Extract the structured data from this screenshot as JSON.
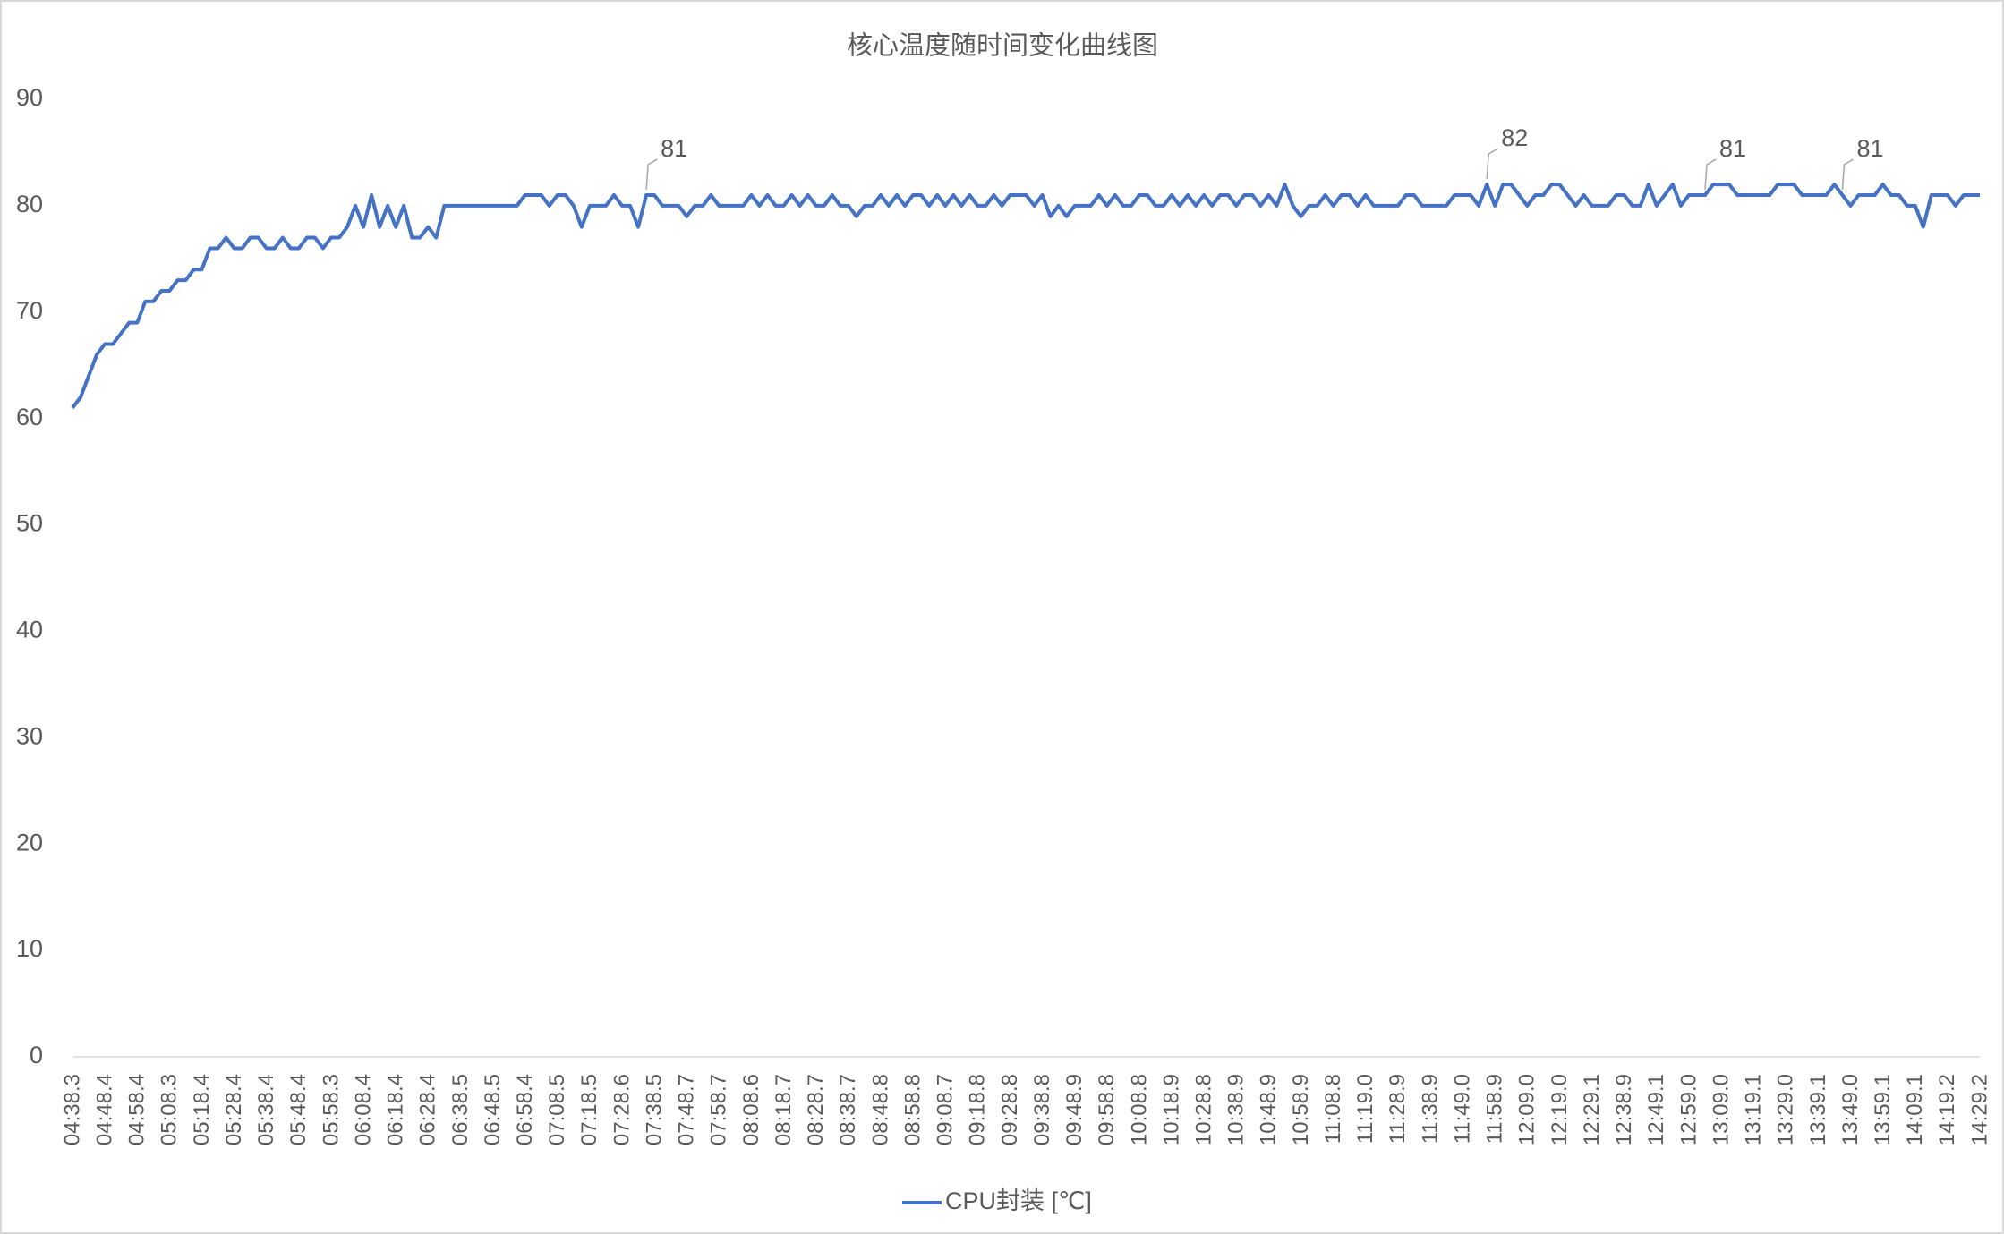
{
  "chart_data": {
    "type": "line",
    "title": "核心温度随时间变化曲线图",
    "categories": [
      "04:38.3",
      null,
      null,
      null,
      "04:48.4",
      null,
      null,
      null,
      "04:58.4",
      null,
      null,
      null,
      "05:08.3",
      null,
      null,
      null,
      "05:18.4",
      null,
      null,
      null,
      "05:28.4",
      null,
      null,
      null,
      "05:38.4",
      null,
      null,
      null,
      "05:48.4",
      null,
      null,
      null,
      "05:58.3",
      null,
      null,
      null,
      "06:08.4",
      null,
      null,
      null,
      "06:18.4",
      null,
      null,
      null,
      "06:28.4",
      null,
      null,
      null,
      "06:38.5",
      null,
      null,
      null,
      "06:48.5",
      null,
      null,
      null,
      "06:58.4",
      null,
      null,
      null,
      "07:08.5",
      null,
      null,
      null,
      "07:18.5",
      null,
      null,
      null,
      "07:28.6",
      null,
      null,
      null,
      "07:38.5",
      null,
      null,
      null,
      "07:48.7",
      null,
      null,
      null,
      "07:58.7",
      null,
      null,
      null,
      "08:08.6",
      null,
      null,
      null,
      "08:18.7",
      null,
      null,
      null,
      "08:28.7",
      null,
      null,
      null,
      "08:38.7",
      null,
      null,
      null,
      "08:48.8",
      null,
      null,
      null,
      "08:58.8",
      null,
      null,
      null,
      "09:08.7",
      null,
      null,
      null,
      "09:18.8",
      null,
      null,
      null,
      "09:28.8",
      null,
      null,
      null,
      "09:38.8",
      null,
      null,
      null,
      "09:48.9",
      null,
      null,
      null,
      "09:58.8",
      null,
      null,
      null,
      "10:08.8",
      null,
      null,
      null,
      "10:18.9",
      null,
      null,
      null,
      "10:28.8",
      null,
      null,
      null,
      "10:38.9",
      null,
      null,
      null,
      "10:48.9",
      null,
      null,
      null,
      "10:58.9",
      null,
      null,
      null,
      "11:08.8",
      null,
      null,
      null,
      "11:19.0",
      null,
      null,
      null,
      "11:28.9",
      null,
      null,
      null,
      "11:38.9",
      null,
      null,
      null,
      "11:49.0",
      null,
      null,
      null,
      "11:58.9",
      null,
      null,
      null,
      "12:09.0",
      null,
      null,
      null,
      "12:19.0",
      null,
      null,
      null,
      "12:29.1",
      null,
      null,
      null,
      "12:38.9",
      null,
      null,
      null,
      "12:49.1",
      null,
      null,
      null,
      "12:59.0",
      null,
      null,
      null,
      "13:09.0",
      null,
      null,
      null,
      "13:19.1",
      null,
      null,
      null,
      "13:29.0",
      null,
      null,
      null,
      "13:39.1",
      null,
      null,
      null,
      "13:49.0",
      null,
      null,
      null,
      "13:59.1",
      null,
      null,
      null,
      "14:09.1",
      null,
      null,
      null,
      "14:19.2",
      null,
      null,
      null,
      "14:29.2"
    ],
    "series": [
      {
        "name": "CPU封装 [℃]",
        "color": "#4472c4",
        "values": [
          61,
          62,
          64,
          66,
          67,
          67,
          68,
          69,
          69,
          71,
          71,
          72,
          72,
          73,
          73,
          74,
          74,
          76,
          76,
          77,
          76,
          76,
          77,
          77,
          76,
          76,
          77,
          76,
          76,
          77,
          77,
          76,
          77,
          77,
          78,
          80,
          78,
          81,
          78,
          80,
          78,
          80,
          77,
          77,
          78,
          77,
          80,
          80,
          80,
          80,
          80,
          80,
          80,
          80,
          80,
          80,
          81,
          81,
          81,
          80,
          81,
          81,
          80,
          78,
          80,
          80,
          80,
          81,
          80,
          80,
          78,
          81,
          81,
          80,
          80,
          80,
          79,
          80,
          80,
          81,
          80,
          80,
          80,
          80,
          81,
          80,
          81,
          80,
          80,
          81,
          80,
          81,
          80,
          80,
          81,
          80,
          80,
          79,
          80,
          80,
          81,
          80,
          81,
          80,
          81,
          81,
          80,
          81,
          80,
          81,
          80,
          81,
          80,
          80,
          81,
          80,
          81,
          81,
          81,
          80,
          81,
          79,
          80,
          79,
          80,
          80,
          80,
          81,
          80,
          81,
          80,
          80,
          81,
          81,
          80,
          80,
          81,
          80,
          81,
          80,
          81,
          80,
          81,
          81,
          80,
          81,
          81,
          80,
          81,
          80,
          82,
          80,
          79,
          80,
          80,
          81,
          80,
          81,
          81,
          80,
          81,
          80,
          80,
          80,
          80,
          81,
          81,
          80,
          80,
          80,
          80,
          81,
          81,
          81,
          80,
          82,
          80,
          82,
          82,
          81,
          80,
          81,
          81,
          82,
          82,
          81,
          80,
          81,
          80,
          80,
          80,
          81,
          81,
          80,
          80,
          82,
          80,
          81,
          82,
          80,
          81,
          81,
          81,
          82,
          82,
          82,
          81,
          81,
          81,
          81,
          81,
          82,
          82,
          82,
          81,
          81,
          81,
          81,
          82,
          81,
          80,
          81,
          81,
          81,
          82,
          81,
          81,
          80,
          80,
          78,
          81,
          81,
          81,
          80,
          81,
          81,
          81
        ],
        "value_labels": [
          null,
          null,
          null,
          null,
          null,
          null,
          null,
          null,
          null,
          null,
          null,
          null,
          null,
          null,
          null,
          null,
          null,
          null,
          null,
          null,
          null,
          null,
          null,
          null,
          null,
          null,
          null,
          null,
          null,
          null,
          null,
          null,
          null,
          null,
          null,
          null,
          null,
          null,
          null,
          null,
          null,
          null,
          null,
          null,
          null,
          null,
          null,
          null,
          null,
          null,
          null,
          null,
          null,
          null,
          null,
          null,
          null,
          null,
          null,
          null,
          null,
          null,
          null,
          null,
          null,
          null,
          null,
          null,
          null,
          null,
          null,
          "81",
          null,
          null,
          null,
          null,
          null,
          null,
          null,
          null,
          null,
          null,
          null,
          null,
          null,
          null,
          null,
          null,
          null,
          null,
          null,
          null,
          null,
          null,
          null,
          null,
          null,
          null,
          null,
          null,
          null,
          null,
          null,
          null,
          null,
          null,
          null,
          null,
          null,
          null,
          null,
          null,
          null,
          null,
          null,
          null,
          null,
          null,
          null,
          null,
          null,
          null,
          null,
          null,
          null,
          null,
          null,
          null,
          null,
          null,
          null,
          null,
          null,
          null,
          null,
          null,
          null,
          null,
          null,
          null,
          null,
          null,
          null,
          null,
          null,
          null,
          null,
          null,
          null,
          null,
          null,
          null,
          null,
          null,
          null,
          null,
          null,
          null,
          null,
          null,
          null,
          null,
          null,
          null,
          null,
          null,
          null,
          null,
          null,
          null,
          null,
          null,
          null,
          null,
          null,
          "82",
          null,
          null,
          null,
          null,
          null,
          null,
          null,
          null,
          null,
          null,
          null,
          null,
          null,
          null,
          null,
          null,
          null,
          null,
          null,
          null,
          null,
          null,
          null,
          null,
          null,
          null,
          "81",
          null,
          null,
          null,
          null,
          null,
          null,
          null,
          null,
          null,
          null,
          null,
          null,
          null,
          null,
          null,
          null,
          "81",
          null,
          null,
          null,
          null,
          null,
          null,
          null,
          null,
          null,
          null,
          null,
          null,
          null,
          null,
          null,
          null,
          null
        ]
      }
    ],
    "ylim": [
      0,
      90
    ],
    "yticks": [
      0,
      10,
      20,
      30,
      40,
      50,
      60,
      70,
      80,
      90
    ],
    "grid": false,
    "legend": "bottom"
  }
}
